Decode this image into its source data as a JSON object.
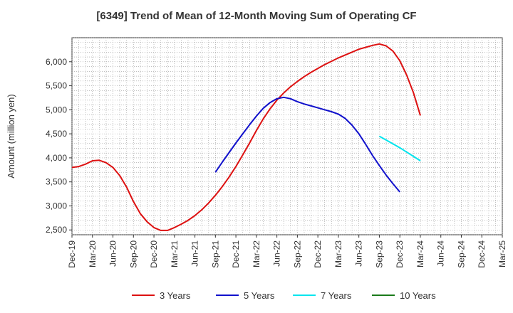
{
  "chart_data": {
    "type": "line",
    "title": "[6349]  Trend of Mean of 12-Month Moving Sum of Operating CF",
    "xlabel": "",
    "ylabel": "Amount (million yen)",
    "ylim": [
      2400,
      6500
    ],
    "y_ticks": [
      2500,
      3000,
      3500,
      4000,
      4500,
      5000,
      5500,
      6000
    ],
    "y_tick_labels": [
      "2,500",
      "3,000",
      "3,500",
      "4,000",
      "4,500",
      "5,000",
      "5,500",
      "6,000"
    ],
    "x_tick_labels": [
      "Dec-19",
      "Mar-20",
      "Jun-20",
      "Sep-20",
      "Dec-20",
      "Mar-21",
      "Jun-21",
      "Sep-21",
      "Dec-21",
      "Mar-22",
      "Jun-22",
      "Sep-22",
      "Dec-22",
      "Mar-23",
      "Jun-23",
      "Sep-23",
      "Dec-23",
      "Mar-24",
      "Jun-24",
      "Sep-24",
      "Dec-24",
      "Mar-25"
    ],
    "grid": true,
    "legend_position": "bottom",
    "series": [
      {
        "name": "3 Years",
        "color": "#dd1111",
        "start_month": 0,
        "values": [
          3800,
          3820,
          3870,
          3940,
          3950,
          3900,
          3800,
          3630,
          3390,
          3090,
          2840,
          2670,
          2550,
          2490,
          2490,
          2550,
          2620,
          2700,
          2800,
          2920,
          3060,
          3220,
          3400,
          3600,
          3820,
          4060,
          4310,
          4570,
          4810,
          5020,
          5200,
          5350,
          5480,
          5590,
          5690,
          5780,
          5860,
          5940,
          6010,
          6080,
          6140,
          6200,
          6260,
          6300,
          6340,
          6370,
          6330,
          6220,
          6020,
          5720,
          5350,
          4880
        ]
      },
      {
        "name": "5 Years",
        "color": "#1111cc",
        "start_month": 21,
        "values": [
          3700,
          3910,
          4110,
          4310,
          4500,
          4690,
          4870,
          5030,
          5150,
          5230,
          5260,
          5230,
          5170,
          5120,
          5080,
          5040,
          5000,
          4960,
          4910,
          4820,
          4680,
          4500,
          4280,
          4050,
          3840,
          3640,
          3460,
          3290
        ]
      },
      {
        "name": "7 Years",
        "color": "#00e5ee",
        "start_month": 45,
        "values": [
          4450,
          4370,
          4290,
          4210,
          4120,
          4030,
          3940
        ]
      },
      {
        "name": "10 Years",
        "color": "#1a7a1a",
        "start_month": 0,
        "values": []
      }
    ]
  }
}
